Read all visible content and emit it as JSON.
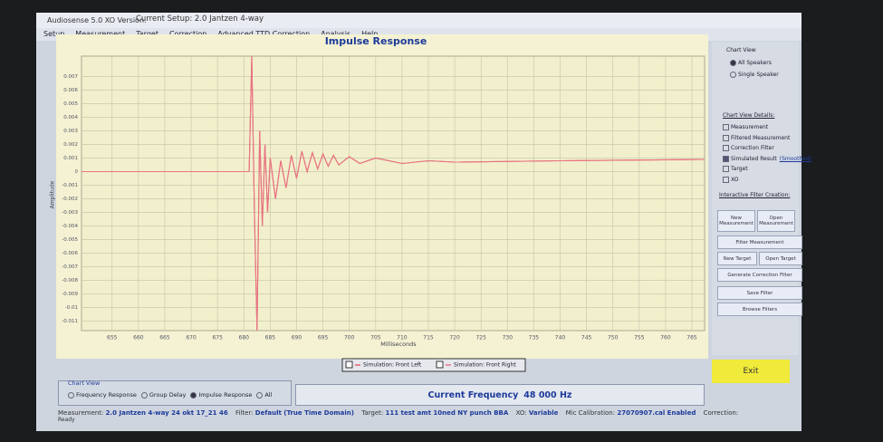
{
  "window": {
    "title": "Audiosense 5.0 XO Version.",
    "setup": "Current Setup: 2.0 Jantzen 4-way"
  },
  "menu": [
    "Setup",
    "Measurement",
    "Target",
    "Correction",
    "Advanced TTD Correction",
    "Analysis",
    "Help"
  ],
  "chart_data": {
    "type": "line",
    "title": "Impulse Response",
    "x_label": "Milliseconds",
    "y_label": "Amplitude",
    "x": [
      649.2,
      681,
      681.5,
      682,
      682.5,
      683,
      683.5,
      684,
      684.5,
      685,
      686,
      687,
      688,
      689,
      690,
      691,
      692,
      693,
      694,
      695,
      696,
      697,
      698,
      700,
      702,
      705,
      710,
      715,
      720,
      740,
      767.4
    ],
    "series": [
      {
        "name": "Simulation: Front Left",
        "color": "#e0606e",
        "values": [
          0,
          0,
          0.0085,
          -0.003,
          -0.0117,
          0.003,
          -0.004,
          0.002,
          -0.003,
          0.001,
          -0.002,
          0.0008,
          -0.0012,
          0.0012,
          -0.0005,
          0.0015,
          0,
          0.0014,
          0.0002,
          0.0013,
          0.0004,
          0.0012,
          0.0005,
          0.0011,
          0.0006,
          0.001,
          0.0006,
          0.0008,
          0.0007,
          0.0008,
          0.0009
        ]
      },
      {
        "name": "Simulation: Front Right",
        "color": "#e87482",
        "values": [
          0,
          0,
          0.0085,
          -0.003,
          -0.0117,
          0.003,
          -0.004,
          0.002,
          -0.003,
          0.001,
          -0.002,
          0.0008,
          -0.0012,
          0.0012,
          -0.0005,
          0.0015,
          0,
          0.0014,
          0.0002,
          0.0013,
          0.0004,
          0.0012,
          0.0005,
          0.0011,
          0.0006,
          0.001,
          0.0006,
          0.0008,
          0.0007,
          0.0008,
          0.0009
        ]
      }
    ],
    "xlim": [
      649.2,
      767.4
    ],
    "ylim": [
      -0.0117,
      0.0085
    ],
    "xticks": [
      655,
      660,
      665,
      670,
      675,
      680,
      685,
      690,
      695,
      700,
      705,
      710,
      715,
      720,
      725,
      730,
      735,
      740,
      745,
      750,
      755,
      760,
      765
    ],
    "yticks": [
      0.007,
      0.006,
      0.005,
      0.004,
      0.003,
      0.002,
      0.001,
      0,
      -0.001,
      -0.002,
      -0.003,
      -0.004,
      -0.005,
      -0.006,
      -0.007,
      -0.008,
      -0.009,
      -0.01,
      -0.011
    ],
    "grid": true
  },
  "side_panel": {
    "chart_view": "Chart View",
    "radios": [
      "All Speakers",
      "Single Speaker"
    ],
    "details_title": "Chart View Details:",
    "details": [
      "Measurement",
      "Filtered Measurement",
      "Correction Filter",
      "Simulated Result",
      "Target",
      "XO"
    ],
    "smoothed": "(Smoothed)",
    "filter_title": "Interactive Filter Creation:",
    "buttons": [
      "New Measurement",
      "Open Measurement",
      "Filter Measurement",
      "New Target",
      "Open Target",
      "Generate Correction Filter",
      "Save Filter",
      "Browse Filters"
    ],
    "exit": "Exit"
  },
  "bottom": {
    "chart_view": "Chart View",
    "radios": [
      "Frequency Response",
      "Group Delay",
      "Impulse Response",
      "All"
    ],
    "frequency_label": "Current Frequency",
    "frequency": "48 000 Hz"
  },
  "status": {
    "measurement_label": "Measurement:",
    "measurement": "2.0 Jantzen 4-way 24 okt 17_21 46",
    "filter_label": "Filter:",
    "filter": "Default (True Time Domain)",
    "target_label": "Target:",
    "target": "111 test amt 10ned NY punch BBA",
    "xo_label": "XO:",
    "xo": "Variable",
    "mic_label": "Mic Calibration:",
    "mic": "27070907.cal Enabled",
    "correction_label": "Correction:",
    "ready": "Ready"
  }
}
